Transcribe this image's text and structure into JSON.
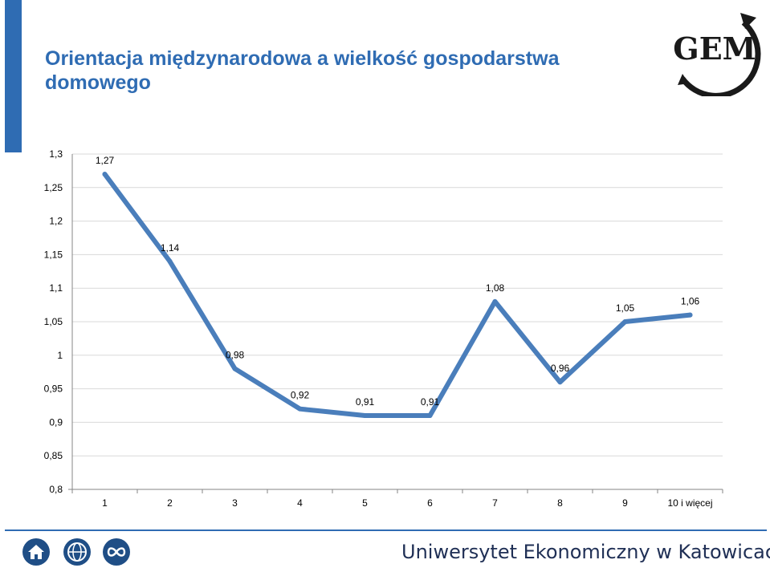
{
  "title": "Orientacja międzynarodowa a wielkość gospodarstwa domowego",
  "logo": {
    "text": "GEM",
    "icon": "gem-logo-icon"
  },
  "colors": {
    "accent": "#2f6cb3",
    "line": "#4a7ebb",
    "footer_icon": "#1f4e86",
    "footer_text": "#1f2f55"
  },
  "footer": {
    "university": "Uniwersytet Ekonomiczny w Katowicach",
    "icons": [
      "home-icon",
      "globe-icon",
      "infinity-icon"
    ]
  },
  "chart_data": {
    "type": "line",
    "categories": [
      "1",
      "2",
      "3",
      "4",
      "5",
      "6",
      "7",
      "8",
      "9",
      "10 i więcej"
    ],
    "values": [
      1.27,
      1.14,
      0.98,
      0.92,
      0.91,
      0.91,
      1.08,
      0.96,
      1.05,
      1.06
    ],
    "data_labels": [
      "1,27",
      "1,14",
      "0,98",
      "0,92",
      "0,91",
      "0,91",
      "1,08",
      "0,96",
      "1,05",
      "1,06"
    ],
    "ylim": [
      0.8,
      1.3
    ],
    "yticks": [
      1.3,
      1.25,
      1.2,
      1.15,
      1.1,
      1.05,
      1.0,
      0.95,
      0.9,
      0.85,
      0.8
    ],
    "ytick_labels": [
      "1,3",
      "1,25",
      "1,2",
      "1,15",
      "1,1",
      "1,05",
      "1",
      "0,95",
      "0,9",
      "0,85",
      "0,8"
    ],
    "grid": true,
    "legend": "none"
  }
}
